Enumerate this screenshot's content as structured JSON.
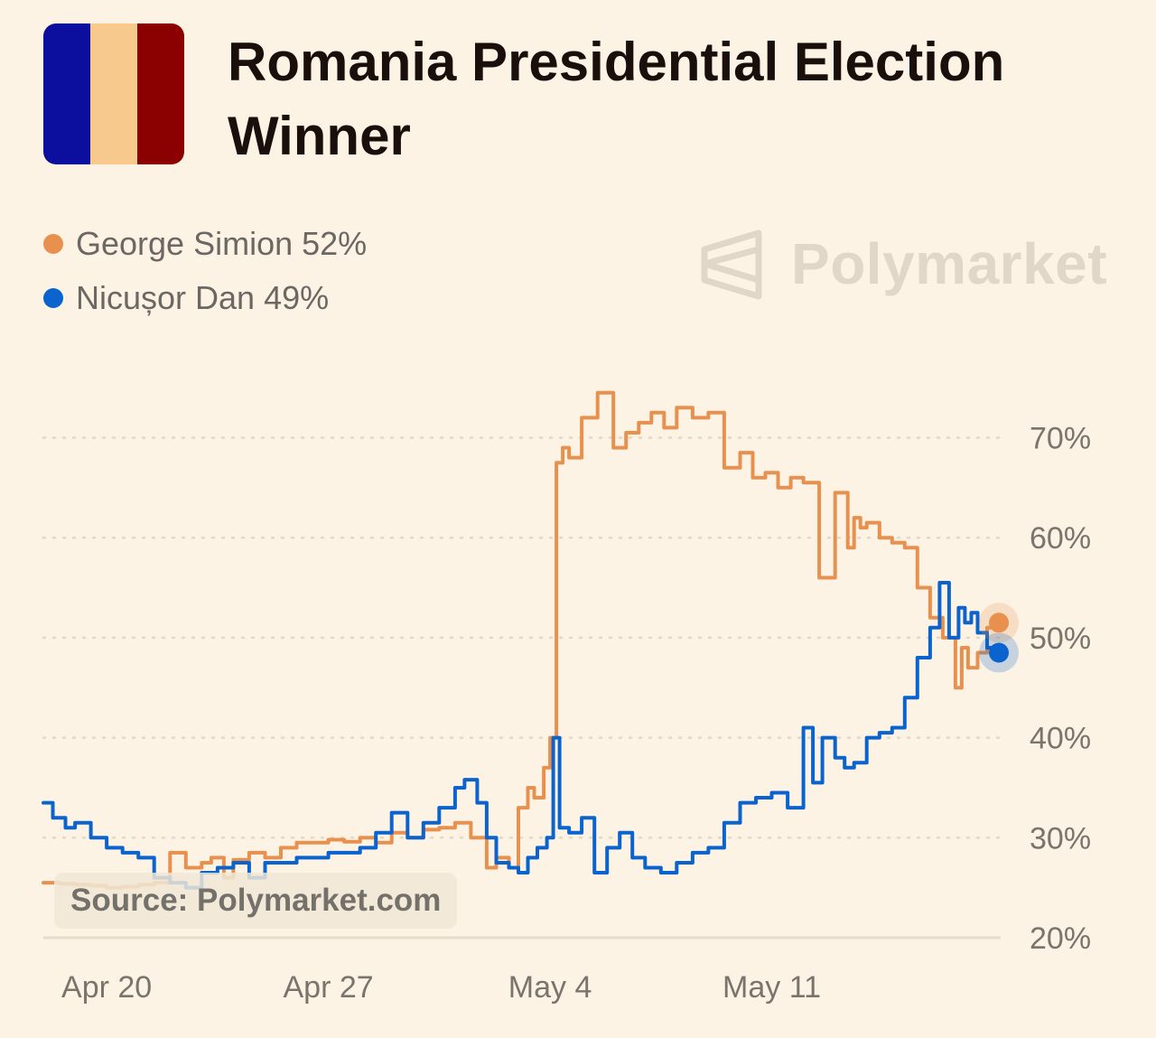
{
  "header": {
    "title": "Romania Presidential Election Winner",
    "flag_colors": [
      "#0c0f9e",
      "#f8c98d",
      "#8b0000"
    ]
  },
  "legend": [
    {
      "label": "George Simion 52%",
      "color": "#e8914f"
    },
    {
      "label": "Nicușor Dan 49%",
      "color": "#0b63ce"
    }
  ],
  "watermark": {
    "text": "Polymarket",
    "icon": "polymarket-logo-icon"
  },
  "source": "Source: Polymarket.com",
  "chart_data": {
    "type": "line",
    "title": "Romania Presidential Election Winner",
    "xlabel": "",
    "ylabel": "",
    "x_start": "Apr 18",
    "x_end": "May 18",
    "xlim_days": [
      0,
      30
    ],
    "ylim": [
      20,
      75
    ],
    "y_ticks": [
      20,
      30,
      40,
      50,
      60,
      70
    ],
    "y_tick_labels": [
      "20%",
      "30%",
      "40%",
      "50%",
      "60%",
      "70%"
    ],
    "x_ticks": [
      {
        "day": 2,
        "label": "Apr 20"
      },
      {
        "day": 9,
        "label": "Apr 27"
      },
      {
        "day": 16,
        "label": "May 4"
      },
      {
        "day": 23,
        "label": "May 11"
      }
    ],
    "grid": "horizontal-dotted",
    "series": [
      {
        "name": "George Simion",
        "color": "#e8914f",
        "current": "52%",
        "x": [
          0,
          0.5,
          1,
          1.5,
          2,
          2.5,
          3,
          3.5,
          4,
          4.5,
          5,
          5.3,
          5.7,
          6,
          6.5,
          7,
          7.5,
          8,
          8.5,
          9,
          9.5,
          10,
          10.5,
          11,
          11.5,
          12,
          12.5,
          13,
          13.5,
          14,
          14.3,
          14.7,
          15,
          15.3,
          15.5,
          15.8,
          16,
          16.2,
          16.4,
          16.6,
          17,
          17.5,
          18,
          18.4,
          18.8,
          19.2,
          19.6,
          20,
          20.5,
          21,
          21.5,
          22,
          22.4,
          22.8,
          23.2,
          23.6,
          24,
          24.5,
          25,
          25.4,
          25.6,
          25.8,
          26,
          26.4,
          26.8,
          27.2,
          27.6,
          28,
          28.4,
          28.8,
          29,
          29.2,
          29.5,
          29.8,
          30
        ],
        "values": [
          25.5,
          25.4,
          25.3,
          25.2,
          25.0,
          25.1,
          25.3,
          25.5,
          28.5,
          27.0,
          27.5,
          28.0,
          26.0,
          27.8,
          28.5,
          28.0,
          29.0,
          29.5,
          29.5,
          29.8,
          29.6,
          30.0,
          29.5,
          30.5,
          30.0,
          30.8,
          31.0,
          31.5,
          30.0,
          27.0,
          28.0,
          27.0,
          33.0,
          35.0,
          34.0,
          37.0,
          40.0,
          67.5,
          69.0,
          68.0,
          72.0,
          74.5,
          69.0,
          70.5,
          71.5,
          72.5,
          71.0,
          73.0,
          72.0,
          72.5,
          67.0,
          68.5,
          66.0,
          66.5,
          65.0,
          66.0,
          65.5,
          56.0,
          64.5,
          59.0,
          62.0,
          61.0,
          61.5,
          60.0,
          59.5,
          59.0,
          55.0,
          52.0,
          50.0,
          45.0,
          49.0,
          47.0,
          48.5,
          51.0,
          51.5
        ]
      },
      {
        "name": "Nicușor Dan",
        "color": "#0b63ce",
        "current": "49%",
        "x": [
          0,
          0.3,
          0.7,
          1,
          1.5,
          2,
          2.5,
          3,
          3.5,
          4,
          4.5,
          5,
          5.5,
          6,
          6.5,
          7,
          7.5,
          8,
          8.5,
          9,
          9.5,
          10,
          10.5,
          11,
          11.5,
          12,
          12.5,
          13,
          13.3,
          13.7,
          14,
          14.3,
          14.7,
          15,
          15.3,
          15.6,
          15.9,
          16.1,
          16.3,
          16.6,
          17,
          17.4,
          17.8,
          18.2,
          18.6,
          19,
          19.5,
          20,
          20.5,
          21,
          21.5,
          22,
          22.5,
          23,
          23.5,
          24,
          24.3,
          24.6,
          25,
          25.3,
          25.6,
          26,
          26.4,
          26.8,
          27.2,
          27.6,
          28,
          28.3,
          28.6,
          28.9,
          29.1,
          29.3,
          29.5,
          29.8,
          30
        ],
        "values": [
          33.5,
          32.0,
          31.0,
          31.5,
          30.0,
          29.0,
          28.5,
          28.0,
          26.0,
          25.5,
          25.0,
          26.5,
          27.0,
          27.5,
          26.0,
          27.5,
          27.5,
          28.0,
          28.0,
          28.5,
          28.5,
          29.0,
          30.5,
          32.5,
          30.0,
          31.5,
          33.0,
          35.0,
          35.8,
          33.5,
          30.0,
          27.5,
          27.0,
          26.5,
          28.0,
          29.0,
          30.0,
          40.0,
          31.0,
          30.5,
          32.0,
          26.5,
          29.0,
          30.5,
          28.0,
          27.0,
          26.5,
          27.5,
          28.5,
          29.0,
          31.5,
          33.5,
          34.0,
          34.5,
          33.0,
          41.0,
          35.5,
          40.0,
          38.0,
          37.0,
          37.5,
          40.0,
          40.5,
          41.0,
          44.0,
          48.0,
          51.0,
          55.5,
          50.0,
          53.0,
          51.5,
          52.5,
          50.5,
          49.0,
          48.5
        ]
      }
    ]
  }
}
